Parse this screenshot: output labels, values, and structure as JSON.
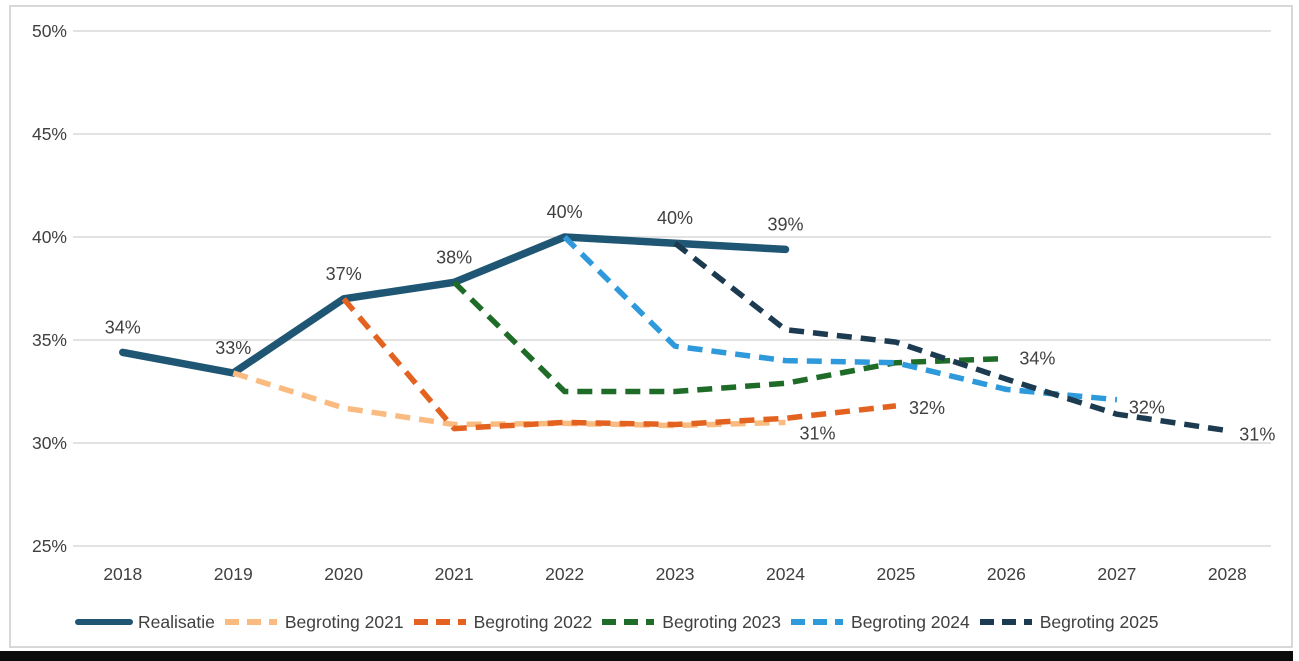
{
  "page": {
    "background_color": "#FFFFFF",
    "frame_border_color": "#D8D8D8",
    "bottom_bar_color": "#0C0C0C"
  },
  "chart_data": {
    "type": "line",
    "title": "",
    "xlabel": "",
    "ylabel": "",
    "x": [
      2018,
      2019,
      2020,
      2021,
      2022,
      2023,
      2024,
      2025,
      2026,
      2027,
      2028
    ],
    "ylim": [
      25,
      50
    ],
    "yticks": [
      25,
      30,
      35,
      40,
      45,
      50
    ],
    "ytick_labels": [
      "25%",
      "30%",
      "35%",
      "40%",
      "45%",
      "50%"
    ],
    "grid": true,
    "gridline_color": "#D9D9D9",
    "axis_text_color": "#404040",
    "legend_position": "bottom-left",
    "series": [
      {
        "name": "Realisatie",
        "color": "#1F5673",
        "style": "solid",
        "start_year": 2018,
        "values": [
          34.4,
          33.4,
          37.0,
          37.8,
          40.0,
          39.7,
          39.4
        ],
        "point_labels": [
          "34%",
          "33%",
          "37%",
          "38%",
          "40%",
          "40%",
          "39%"
        ]
      },
      {
        "name": "Begroting 2021",
        "color": "#FABB80",
        "style": "dashed",
        "start_year": 2019,
        "values": [
          33.4,
          31.7,
          30.9,
          30.95,
          30.85,
          31.0
        ],
        "end_label": "31%",
        "end_label_offset": [
          14,
          17
        ]
      },
      {
        "name": "Begroting 2022",
        "color": "#E46220",
        "style": "dashed",
        "start_year": 2020,
        "values": [
          37.0,
          30.7,
          31.0,
          30.9,
          31.2,
          31.8
        ],
        "end_label": "32%",
        "end_label_offset": [
          13,
          8
        ]
      },
      {
        "name": "Begroting 2023",
        "color": "#1E6C28",
        "style": "dashed",
        "start_year": 2021,
        "values": [
          37.8,
          32.5,
          32.5,
          32.9,
          33.9,
          34.1
        ],
        "end_label": "34%",
        "end_label_offset": [
          13,
          6
        ]
      },
      {
        "name": "Begroting 2024",
        "color": "#2E99DB",
        "style": "dashed",
        "start_year": 2022,
        "values": [
          40.0,
          34.7,
          34.0,
          33.9,
          32.6,
          32.1
        ],
        "end_label": "32%",
        "end_label_offset": [
          12,
          14
        ]
      },
      {
        "name": "Begroting 2025",
        "color": "#1C3A50",
        "style": "dashed",
        "start_year": 2023,
        "values": [
          39.7,
          35.5,
          34.9,
          33.1,
          31.4,
          30.6
        ],
        "end_label": "31%",
        "end_label_offset": [
          12,
          10
        ]
      }
    ]
  }
}
